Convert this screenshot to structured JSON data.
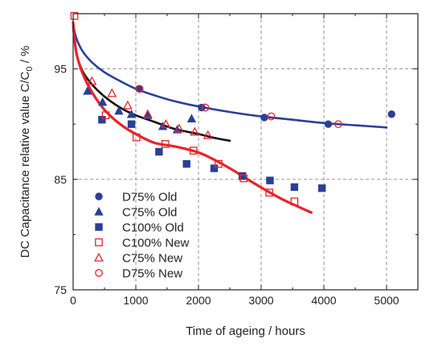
{
  "chart_data": {
    "type": "scatter",
    "xlabel": "Time of ageing / hours",
    "ylabel_main": "DC Capacitance relative value C/C",
    "ylabel_sub": "0",
    "ylabel_tail": " / %",
    "xlim": [
      0,
      5500
    ],
    "ylim": [
      75,
      100
    ],
    "xticks": [
      0,
      1000,
      2000,
      3000,
      4000,
      5000
    ],
    "yticks": [
      75,
      85,
      95
    ],
    "ygrid": [
      85,
      95
    ],
    "grid": true,
    "legend_position": "bottom-center",
    "colors": {
      "blue": "#2a3f97",
      "red": "#e8242a",
      "black": "#111111"
    },
    "series": [
      {
        "name": "D75% Old",
        "marker": "circle-filled",
        "color": "#2a3f97",
        "points": [
          [
            1050,
            93.2
          ],
          [
            2050,
            91.5
          ],
          [
            3050,
            90.6
          ],
          [
            4070,
            90.0
          ],
          [
            5080,
            90.9
          ]
        ]
      },
      {
        "name": "C75% Old",
        "marker": "triangle-filled",
        "color": "#2a3f97",
        "points": [
          [
            230,
            93.0
          ],
          [
            470,
            92.0
          ],
          [
            730,
            91.2
          ],
          [
            930,
            90.9
          ],
          [
            1190,
            90.8
          ],
          [
            1430,
            89.8
          ],
          [
            1660,
            89.5
          ],
          [
            1890,
            90.5
          ]
        ]
      },
      {
        "name": "C100% Old",
        "marker": "square-filled",
        "color": "#2a3f97",
        "points": [
          [
            460,
            90.4
          ],
          [
            930,
            90.0
          ],
          [
            1370,
            87.5
          ],
          [
            1810,
            86.4
          ],
          [
            2250,
            86.0
          ],
          [
            2700,
            85.3
          ],
          [
            3140,
            84.9
          ],
          [
            3530,
            84.3
          ],
          [
            3970,
            84.2
          ]
        ]
      },
      {
        "name": "C100% New",
        "marker": "square-open",
        "color": "#e8242a",
        "points": [
          [
            20,
            99.8
          ],
          [
            520,
            90.8
          ],
          [
            1010,
            88.8
          ],
          [
            1470,
            88.2
          ],
          [
            1920,
            87.6
          ],
          [
            2320,
            86.4
          ],
          [
            2720,
            85.1
          ],
          [
            3130,
            83.8
          ],
          [
            3530,
            83.0
          ]
        ]
      },
      {
        "name": "C75% New",
        "marker": "triangle-open",
        "color": "#e8242a",
        "points": [
          [
            300,
            93.9
          ],
          [
            620,
            92.8
          ],
          [
            870,
            91.7
          ],
          [
            1190,
            90.9
          ],
          [
            1480,
            90.0
          ],
          [
            1690,
            89.6
          ],
          [
            1940,
            89.3
          ],
          [
            2150,
            89.0
          ]
        ]
      },
      {
        "name": "D75% New",
        "marker": "circle-open",
        "color": "#e8242a",
        "points": [
          [
            1060,
            93.2
          ],
          [
            2110,
            91.5
          ],
          [
            3160,
            90.7
          ],
          [
            4230,
            90.0
          ]
        ]
      }
    ],
    "fit_lines": [
      {
        "color": "#2a3f97",
        "points": [
          [
            0,
            99.0
          ],
          [
            50,
            97.8
          ],
          [
            150,
            96.6
          ],
          [
            300,
            95.6
          ],
          [
            500,
            94.7
          ],
          [
            750,
            93.9
          ],
          [
            1000,
            93.2
          ],
          [
            1300,
            92.6
          ],
          [
            1600,
            92.1
          ],
          [
            2000,
            91.6
          ],
          [
            2500,
            91.1
          ],
          [
            3000,
            90.7
          ],
          [
            3500,
            90.4
          ],
          [
            4000,
            90.1
          ],
          [
            4500,
            89.9
          ],
          [
            5000,
            89.7
          ]
        ]
      },
      {
        "color": "#111111",
        "points": [
          [
            0,
            98.8
          ],
          [
            50,
            96.5
          ],
          [
            150,
            94.8
          ],
          [
            300,
            93.6
          ],
          [
            500,
            92.5
          ],
          [
            750,
            91.5
          ],
          [
            1000,
            90.8
          ],
          [
            1300,
            90.2
          ],
          [
            1600,
            89.6
          ],
          [
            2000,
            89.1
          ],
          [
            2300,
            88.7
          ],
          [
            2500,
            88.5
          ]
        ]
      },
      {
        "color": "#e8242a",
        "points": [
          [
            0,
            99.2
          ],
          [
            50,
            96.5
          ],
          [
            150,
            94.6
          ],
          [
            300,
            92.9
          ],
          [
            500,
            91.3
          ],
          [
            750,
            90.0
          ],
          [
            1000,
            89.1
          ],
          [
            1300,
            88.3
          ],
          [
            1600,
            88.0
          ],
          [
            1900,
            87.6
          ],
          [
            2100,
            87.2
          ],
          [
            2500,
            86.0
          ],
          [
            2900,
            84.6
          ],
          [
            3300,
            83.3
          ],
          [
            3600,
            82.5
          ],
          [
            3800,
            82.0
          ]
        ]
      }
    ]
  }
}
